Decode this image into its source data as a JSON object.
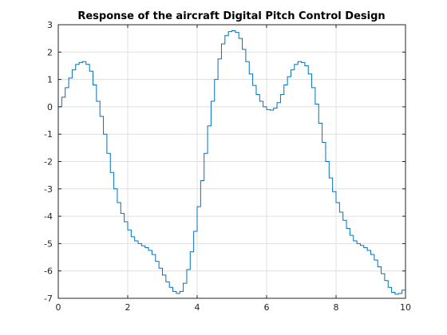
{
  "chart_data": {
    "type": "line",
    "style": "stairs",
    "title": "Response of the aircraft Digital Pitch Control Design",
    "xlabel": "",
    "ylabel": "",
    "xlim": [
      0,
      10
    ],
    "ylim": [
      -7,
      3
    ],
    "grid": true,
    "x_ticks": [
      0,
      2,
      4,
      6,
      8,
      10
    ],
    "y_ticks": [
      3,
      2,
      1,
      0,
      -1,
      -2,
      -3,
      -4,
      -5,
      -6,
      -7
    ],
    "series_color": "#0072bd",
    "sample_time": 0.1,
    "series": [
      {
        "x": [
          0,
          0.1,
          0.2,
          0.3,
          0.4,
          0.5,
          0.6,
          0.7,
          0.8,
          0.9,
          1.0,
          1.1,
          1.2,
          1.3,
          1.4,
          1.5,
          1.6,
          1.7,
          1.8,
          1.9,
          2.0,
          2.1,
          2.2,
          2.3,
          2.4,
          2.5,
          2.6,
          2.7,
          2.8,
          2.9,
          3.0,
          3.1,
          3.2,
          3.3,
          3.4,
          3.5,
          3.6,
          3.7,
          3.8,
          3.9,
          4.0,
          4.1,
          4.2,
          4.3,
          4.4,
          4.5,
          4.6,
          4.7,
          4.8,
          4.9,
          5.0,
          5.1,
          5.2,
          5.3,
          5.4,
          5.5,
          5.6,
          5.7,
          5.8,
          5.9,
          6.0,
          6.1,
          6.2,
          6.3,
          6.4,
          6.5,
          6.6,
          6.7,
          6.8,
          6.9,
          7.0,
          7.1,
          7.2,
          7.3,
          7.4,
          7.5,
          7.6,
          7.7,
          7.8,
          7.9,
          8.0,
          8.1,
          8.2,
          8.3,
          8.4,
          8.5,
          8.6,
          8.7,
          8.8,
          8.9,
          9.0,
          9.1,
          9.2,
          9.3,
          9.4,
          9.5,
          9.6,
          9.7,
          9.8,
          9.9,
          10.0
        ],
        "y": [
          0,
          0.35,
          0.7,
          1.05,
          1.35,
          1.55,
          1.62,
          1.65,
          1.55,
          1.3,
          0.8,
          0.2,
          -0.35,
          -1.0,
          -1.7,
          -2.4,
          -3.0,
          -3.5,
          -3.9,
          -4.2,
          -4.5,
          -4.75,
          -4.9,
          -5.0,
          -5.08,
          -5.15,
          -5.25,
          -5.4,
          -5.65,
          -5.9,
          -6.15,
          -6.4,
          -6.6,
          -6.75,
          -6.82,
          -6.75,
          -6.45,
          -5.95,
          -5.3,
          -4.55,
          -3.65,
          -2.7,
          -1.7,
          -0.7,
          0.2,
          1.0,
          1.75,
          2.3,
          2.6,
          2.75,
          2.78,
          2.72,
          2.5,
          2.1,
          1.65,
          1.2,
          0.78,
          0.45,
          0.2,
          0.0,
          -0.1,
          -0.12,
          -0.05,
          0.15,
          0.45,
          0.8,
          1.1,
          1.35,
          1.55,
          1.65,
          1.62,
          1.5,
          1.2,
          0.7,
          0.1,
          -0.6,
          -1.3,
          -2.0,
          -2.6,
          -3.1,
          -3.5,
          -3.85,
          -4.15,
          -4.45,
          -4.7,
          -4.9,
          -5.0,
          -5.07,
          -5.15,
          -5.25,
          -5.4,
          -5.6,
          -5.85,
          -6.1,
          -6.35,
          -6.6,
          -6.78,
          -6.85,
          -6.82,
          -6.7,
          -6.5
        ]
      }
    ]
  }
}
